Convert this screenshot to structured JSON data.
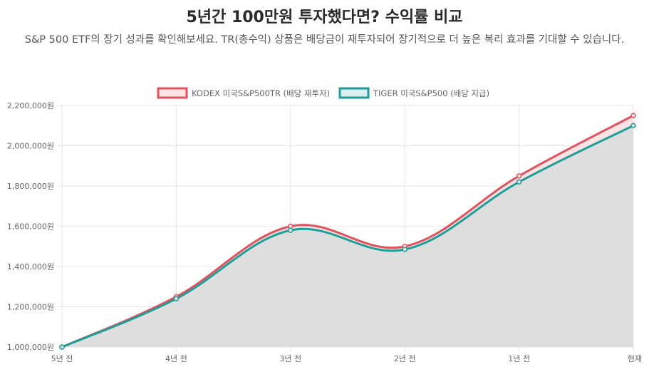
{
  "page": {
    "title": "5년간 100만원 투자했다면? 수익률 비교",
    "subtitle": "S&P 500 ETF의 장기 성과를 확인해보세요. TR(총수익) 상품은 배당금이 재투자되어 장기적으로 더 높은 복리 효과를 기대할 수 있습니다."
  },
  "chart_data": {
    "type": "line",
    "categories": [
      "5년 전",
      "4년 전",
      "3년 전",
      "2년 전",
      "1년 전",
      "현재"
    ],
    "series": [
      {
        "name": "KODEX 미국S&P500TR (배당 재투자)",
        "values": [
          1000000,
          1250000,
          1600000,
          1500000,
          1850000,
          2150000
        ],
        "color": "#e0525e",
        "fill": "#fde3e4"
      },
      {
        "name": "TIGER 미국S&P500 (배당 지급)",
        "values": [
          1000000,
          1240000,
          1580000,
          1485000,
          1820000,
          2100000
        ],
        "color": "#1e9e98",
        "fill": "#dedede"
      }
    ],
    "ylim": [
      1000000,
      2200000
    ],
    "yticks": [
      1000000,
      1200000,
      1400000,
      1600000,
      1800000,
      2000000,
      2200000
    ],
    "ytick_labels": [
      "1,000,000원",
      "1,200,000원",
      "1,400,000원",
      "1,600,000원",
      "1,800,000원",
      "2,000,000원",
      "2,200,000원"
    ],
    "legend_position": "top",
    "grid": true
  }
}
